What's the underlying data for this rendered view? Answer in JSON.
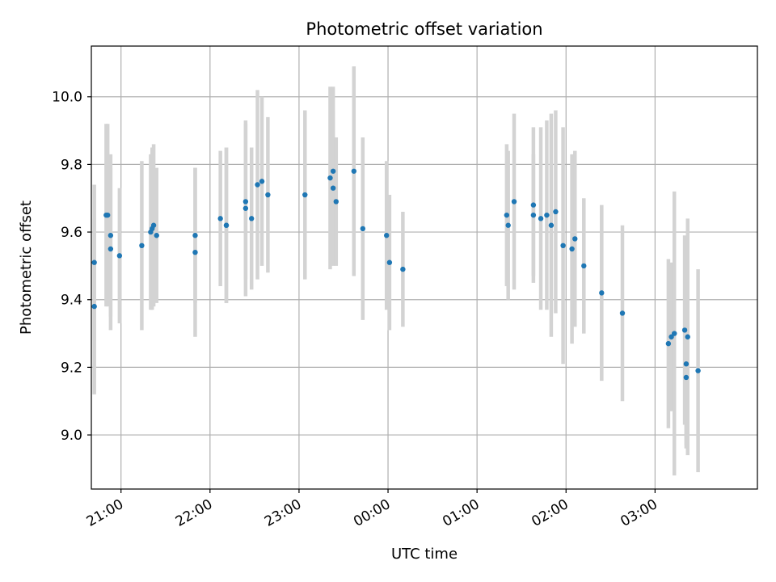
{
  "chart_data": {
    "type": "scatter",
    "title": "Photometric offset variation",
    "xlabel": "UTC time",
    "ylabel": "Photometric offset",
    "x_unit": "UTC time (hh:mm), night spanning midnight",
    "xlim": [
      "20:40",
      "04:09"
    ],
    "ylim": [
      8.84,
      10.15
    ],
    "grid": true,
    "x_ticks": [
      "21:00",
      "22:00",
      "23:00",
      "00:00",
      "01:00",
      "02:00",
      "03:00"
    ],
    "y_ticks": [
      "9.0",
      "9.2",
      "9.4",
      "9.6",
      "9.8",
      "10.0"
    ],
    "colors": {
      "marker": "#1f77b4",
      "errorbar": "#d3d3d3",
      "grid": "#b0b0b0"
    },
    "series": [
      {
        "x": [
          "20:42",
          "20:42",
          "20:50",
          "20:51",
          "20:53",
          "20:53",
          "20:59",
          "21:14",
          "21:20",
          "21:21",
          "21:22",
          "21:24",
          "21:50",
          "21:50",
          "22:07",
          "22:11",
          "22:11",
          "22:24",
          "22:24",
          "22:28",
          "22:32",
          "22:35",
          "22:39",
          "23:04",
          "23:21",
          "23:23",
          "23:23",
          "23:25",
          "23:37",
          "23:43",
          "23:59",
          "00:01",
          "00:10",
          "01:20",
          "01:21",
          "01:25",
          "01:38",
          "01:38",
          "01:43",
          "01:47",
          "01:50",
          "01:53",
          "01:58",
          "02:04",
          "02:06",
          "02:12",
          "02:24",
          "02:38",
          "03:09",
          "03:11",
          "03:13",
          "03:20",
          "03:21",
          "03:21",
          "03:22",
          "03:29"
        ],
        "y": [
          9.38,
          9.51,
          9.65,
          9.65,
          9.59,
          9.55,
          9.53,
          9.56,
          9.6,
          9.61,
          9.62,
          9.59,
          9.59,
          9.54,
          9.64,
          9.62,
          9.62,
          9.67,
          9.69,
          9.64,
          9.74,
          9.75,
          9.71,
          9.71,
          9.76,
          9.73,
          9.78,
          9.69,
          9.78,
          9.61,
          9.59,
          9.51,
          9.49,
          9.65,
          9.62,
          9.69,
          9.68,
          9.65,
          9.64,
          9.65,
          9.62,
          9.66,
          9.56,
          9.55,
          9.58,
          9.5,
          9.42,
          9.36,
          9.27,
          9.29,
          9.3,
          9.31,
          9.17,
          9.21,
          9.29,
          9.19
        ],
        "yerr": [
          0.26,
          0.23,
          0.27,
          0.27,
          0.24,
          0.24,
          0.2,
          0.25,
          0.23,
          0.24,
          0.24,
          0.2,
          0.2,
          0.25,
          0.2,
          0.23,
          0.23,
          0.26,
          0.23,
          0.21,
          0.28,
          0.25,
          0.23,
          0.25,
          0.27,
          0.23,
          0.25,
          0.19,
          0.31,
          0.27,
          0.22,
          0.2,
          0.17,
          0.21,
          0.22,
          0.26,
          0.23,
          0.18,
          0.27,
          0.28,
          0.33,
          0.3,
          0.35,
          0.28,
          0.26,
          0.2,
          0.26,
          0.26,
          0.25,
          0.22,
          0.42,
          0.28,
          0.21,
          0.24,
          0.35,
          0.3
        ]
      }
    ]
  }
}
